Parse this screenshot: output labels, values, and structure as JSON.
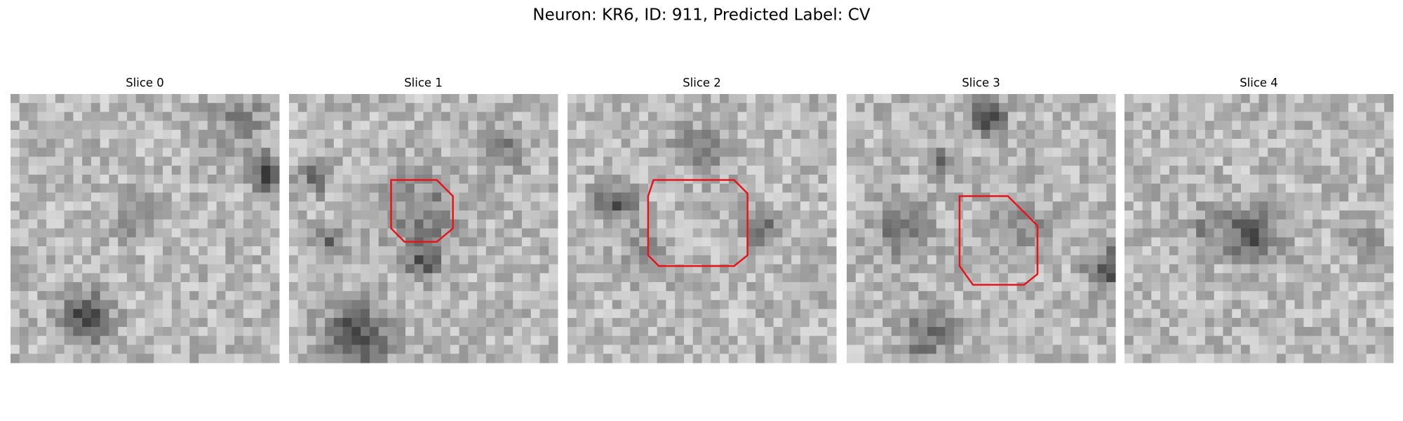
{
  "title": "Neuron: KR6, ID: 911, Predicted Label: CV",
  "panels": [
    {
      "title": "Slice 0"
    },
    {
      "title": "Slice 1"
    },
    {
      "title": "Slice 2"
    },
    {
      "title": "Slice 3"
    },
    {
      "title": "Slice 4"
    }
  ]
}
